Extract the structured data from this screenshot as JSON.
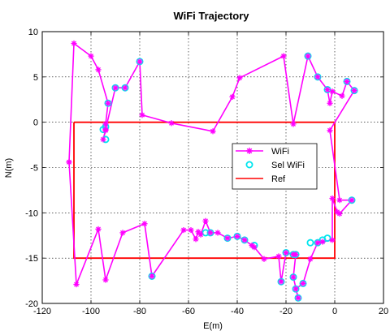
{
  "chart_data": {
    "type": "line",
    "title": "WiFi Trajectory",
    "xlabel": "E(m)",
    "ylabel": "N(m)",
    "xlim": [
      -120,
      20
    ],
    "ylim": [
      -20,
      10
    ],
    "xticks": [
      -120,
      -100,
      -80,
      -60,
      -40,
      -20,
      0,
      20
    ],
    "yticks": [
      -20,
      -15,
      -10,
      -5,
      0,
      5,
      10
    ],
    "xtick_labels": [
      "-120",
      "-100",
      "-80",
      "-60",
      "-40",
      "-20",
      "0",
      "20"
    ],
    "ytick_labels": [
      "-20",
      "-15",
      "-10",
      "-5",
      "0",
      "5",
      "10"
    ],
    "grid": true,
    "legend_position": "center-right",
    "series": [
      {
        "name": "WiFi",
        "color": "#ff00ff",
        "marker": "star",
        "x": [
          -109,
          -107,
          -100,
          -97,
          -93,
          -94,
          -94,
          -95,
          -94,
          -90,
          -86,
          -80,
          -79,
          -67,
          -50,
          -42,
          -39,
          -21,
          -17,
          -11,
          -7,
          -3,
          -2,
          -1,
          3,
          5,
          8,
          -2,
          2,
          7,
          2,
          1,
          -1,
          -1,
          -5,
          -7,
          -10,
          -13,
          -16,
          -15,
          -17,
          -16,
          -17,
          -20,
          -22,
          -23,
          -29,
          -33,
          -34,
          -37,
          -40,
          -44,
          -48,
          -51,
          -53,
          -55,
          -56,
          -57,
          -59,
          -62,
          -75,
          -78,
          -87,
          -94,
          -97,
          -106,
          -109
        ],
        "y": [
          -4.4,
          8.7,
          7.3,
          5.8,
          2.1,
          -0.2,
          -0.9,
          -1.9,
          -0.8,
          3.8,
          3.8,
          6.7,
          0.8,
          -0.1,
          -1.0,
          2.8,
          4.9,
          7.3,
          -0.2,
          7.3,
          5.0,
          3.6,
          2.1,
          3.4,
          2.9,
          4.5,
          3.5,
          -0.9,
          -8.6,
          -8.6,
          -10.1,
          -9.9,
          -8.4,
          -13.0,
          -13.2,
          -13.3,
          -15.1,
          -17.8,
          -18.4,
          -19.4,
          -17.1,
          -14.6,
          -14.6,
          -14.4,
          -17.6,
          -14.8,
          -15.1,
          -13.8,
          -13.6,
          -13.0,
          -12.6,
          -12.8,
          -12.2,
          -12.2,
          -10.9,
          -12.4,
          -12.1,
          -12.9,
          -11.9,
          -11.9,
          -17.0,
          -11.2,
          -12.2,
          -17.4,
          -11.8,
          -17.9,
          -4.4
        ]
      },
      {
        "name": "Sel WiFi",
        "color": "#00e5ee",
        "marker": "circle",
        "x": [
          -95,
          -94,
          -94,
          -93,
          -90,
          -86,
          -80,
          -11,
          -7,
          -3,
          5,
          8,
          7,
          -3,
          -5,
          -7,
          -10,
          -13,
          -16,
          -15,
          -17,
          -16,
          -17,
          -20,
          -22,
          -33,
          -37,
          -40,
          -44,
          -51,
          -53,
          -75
        ],
        "y": [
          -0.8,
          -1.9,
          -0.5,
          2.1,
          3.8,
          3.8,
          6.7,
          7.3,
          5.0,
          3.6,
          4.5,
          3.5,
          -8.6,
          -12.8,
          -13.0,
          -13.3,
          -13.3,
          -17.8,
          -18.4,
          -19.4,
          -17.1,
          -14.6,
          -14.6,
          -14.4,
          -17.6,
          -13.6,
          -13.0,
          -12.6,
          -12.8,
          -12.2,
          -12.2,
          -17.0
        ]
      },
      {
        "name": "Ref",
        "color": "#ff0000",
        "marker": "none",
        "x": [
          -107,
          0,
          0,
          -107,
          -107
        ],
        "y": [
          0,
          0,
          -15,
          -15,
          0
        ]
      }
    ]
  }
}
